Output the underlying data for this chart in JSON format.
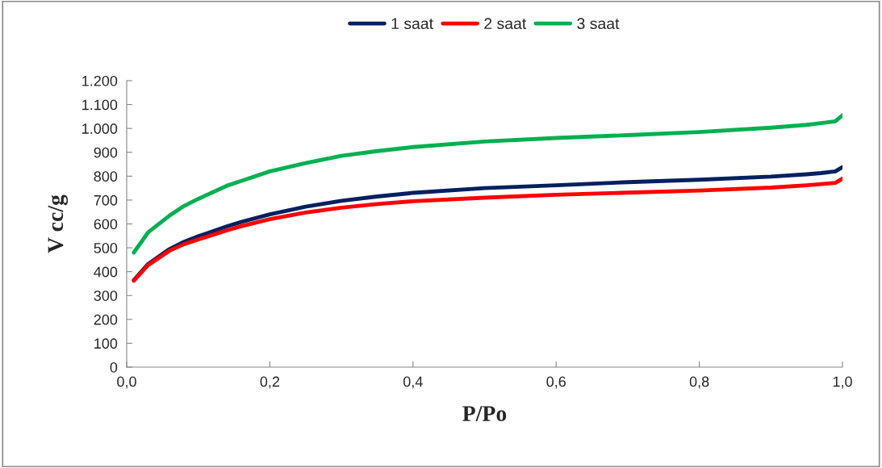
{
  "chart_data": {
    "type": "line",
    "xlabel": "P/Po",
    "ylabel": "V cc/g",
    "legend": "top",
    "grid": false,
    "marker": "none",
    "line_style": "solid",
    "xlim": [
      0,
      1
    ],
    "ylim": [
      0,
      1200
    ],
    "xticks": [
      {
        "value": 0,
        "label": "0,0"
      },
      {
        "value": 0.2,
        "label": "0,2"
      },
      {
        "value": 0.4,
        "label": "0,4"
      },
      {
        "value": 0.6,
        "label": "0,6"
      },
      {
        "value": 0.8,
        "label": "0,8"
      },
      {
        "value": 1,
        "label": "1,0"
      }
    ],
    "yticks": [
      0,
      100,
      200,
      300,
      400,
      500,
      600,
      700,
      800,
      900,
      {
        "value": 1000,
        "label": "1.000"
      },
      {
        "value": 1100,
        "label": "1.100"
      },
      {
        "value": 1200,
        "label": "1.200"
      }
    ],
    "x": [
      0.01,
      0.03,
      0.06,
      0.08,
      0.1,
      0.14,
      0.16,
      0.2,
      0.25,
      0.3,
      0.35,
      0.4,
      0.5,
      0.6,
      0.7,
      0.8,
      0.9,
      0.95,
      0.97,
      0.99,
      1.0
    ],
    "series": [
      {
        "name": "1 saat",
        "color": "#002060",
        "values": [
          365,
          432,
          495,
          525,
          548,
          590,
          608,
          640,
          672,
          697,
          715,
          730,
          750,
          762,
          775,
          785,
          798,
          808,
          813,
          820,
          838
        ]
      },
      {
        "name": "2 saat",
        "color": "#ff0000",
        "values": [
          362,
          428,
          488,
          515,
          535,
          573,
          590,
          620,
          648,
          668,
          683,
          695,
          710,
          722,
          731,
          740,
          752,
          762,
          767,
          772,
          790
        ]
      },
      {
        "name": "3 saat",
        "color": "#00b050",
        "values": [
          480,
          565,
          635,
          675,
          705,
          760,
          780,
          820,
          855,
          885,
          905,
          922,
          945,
          960,
          972,
          985,
          1003,
          1015,
          1022,
          1030,
          1055
        ]
      }
    ]
  }
}
